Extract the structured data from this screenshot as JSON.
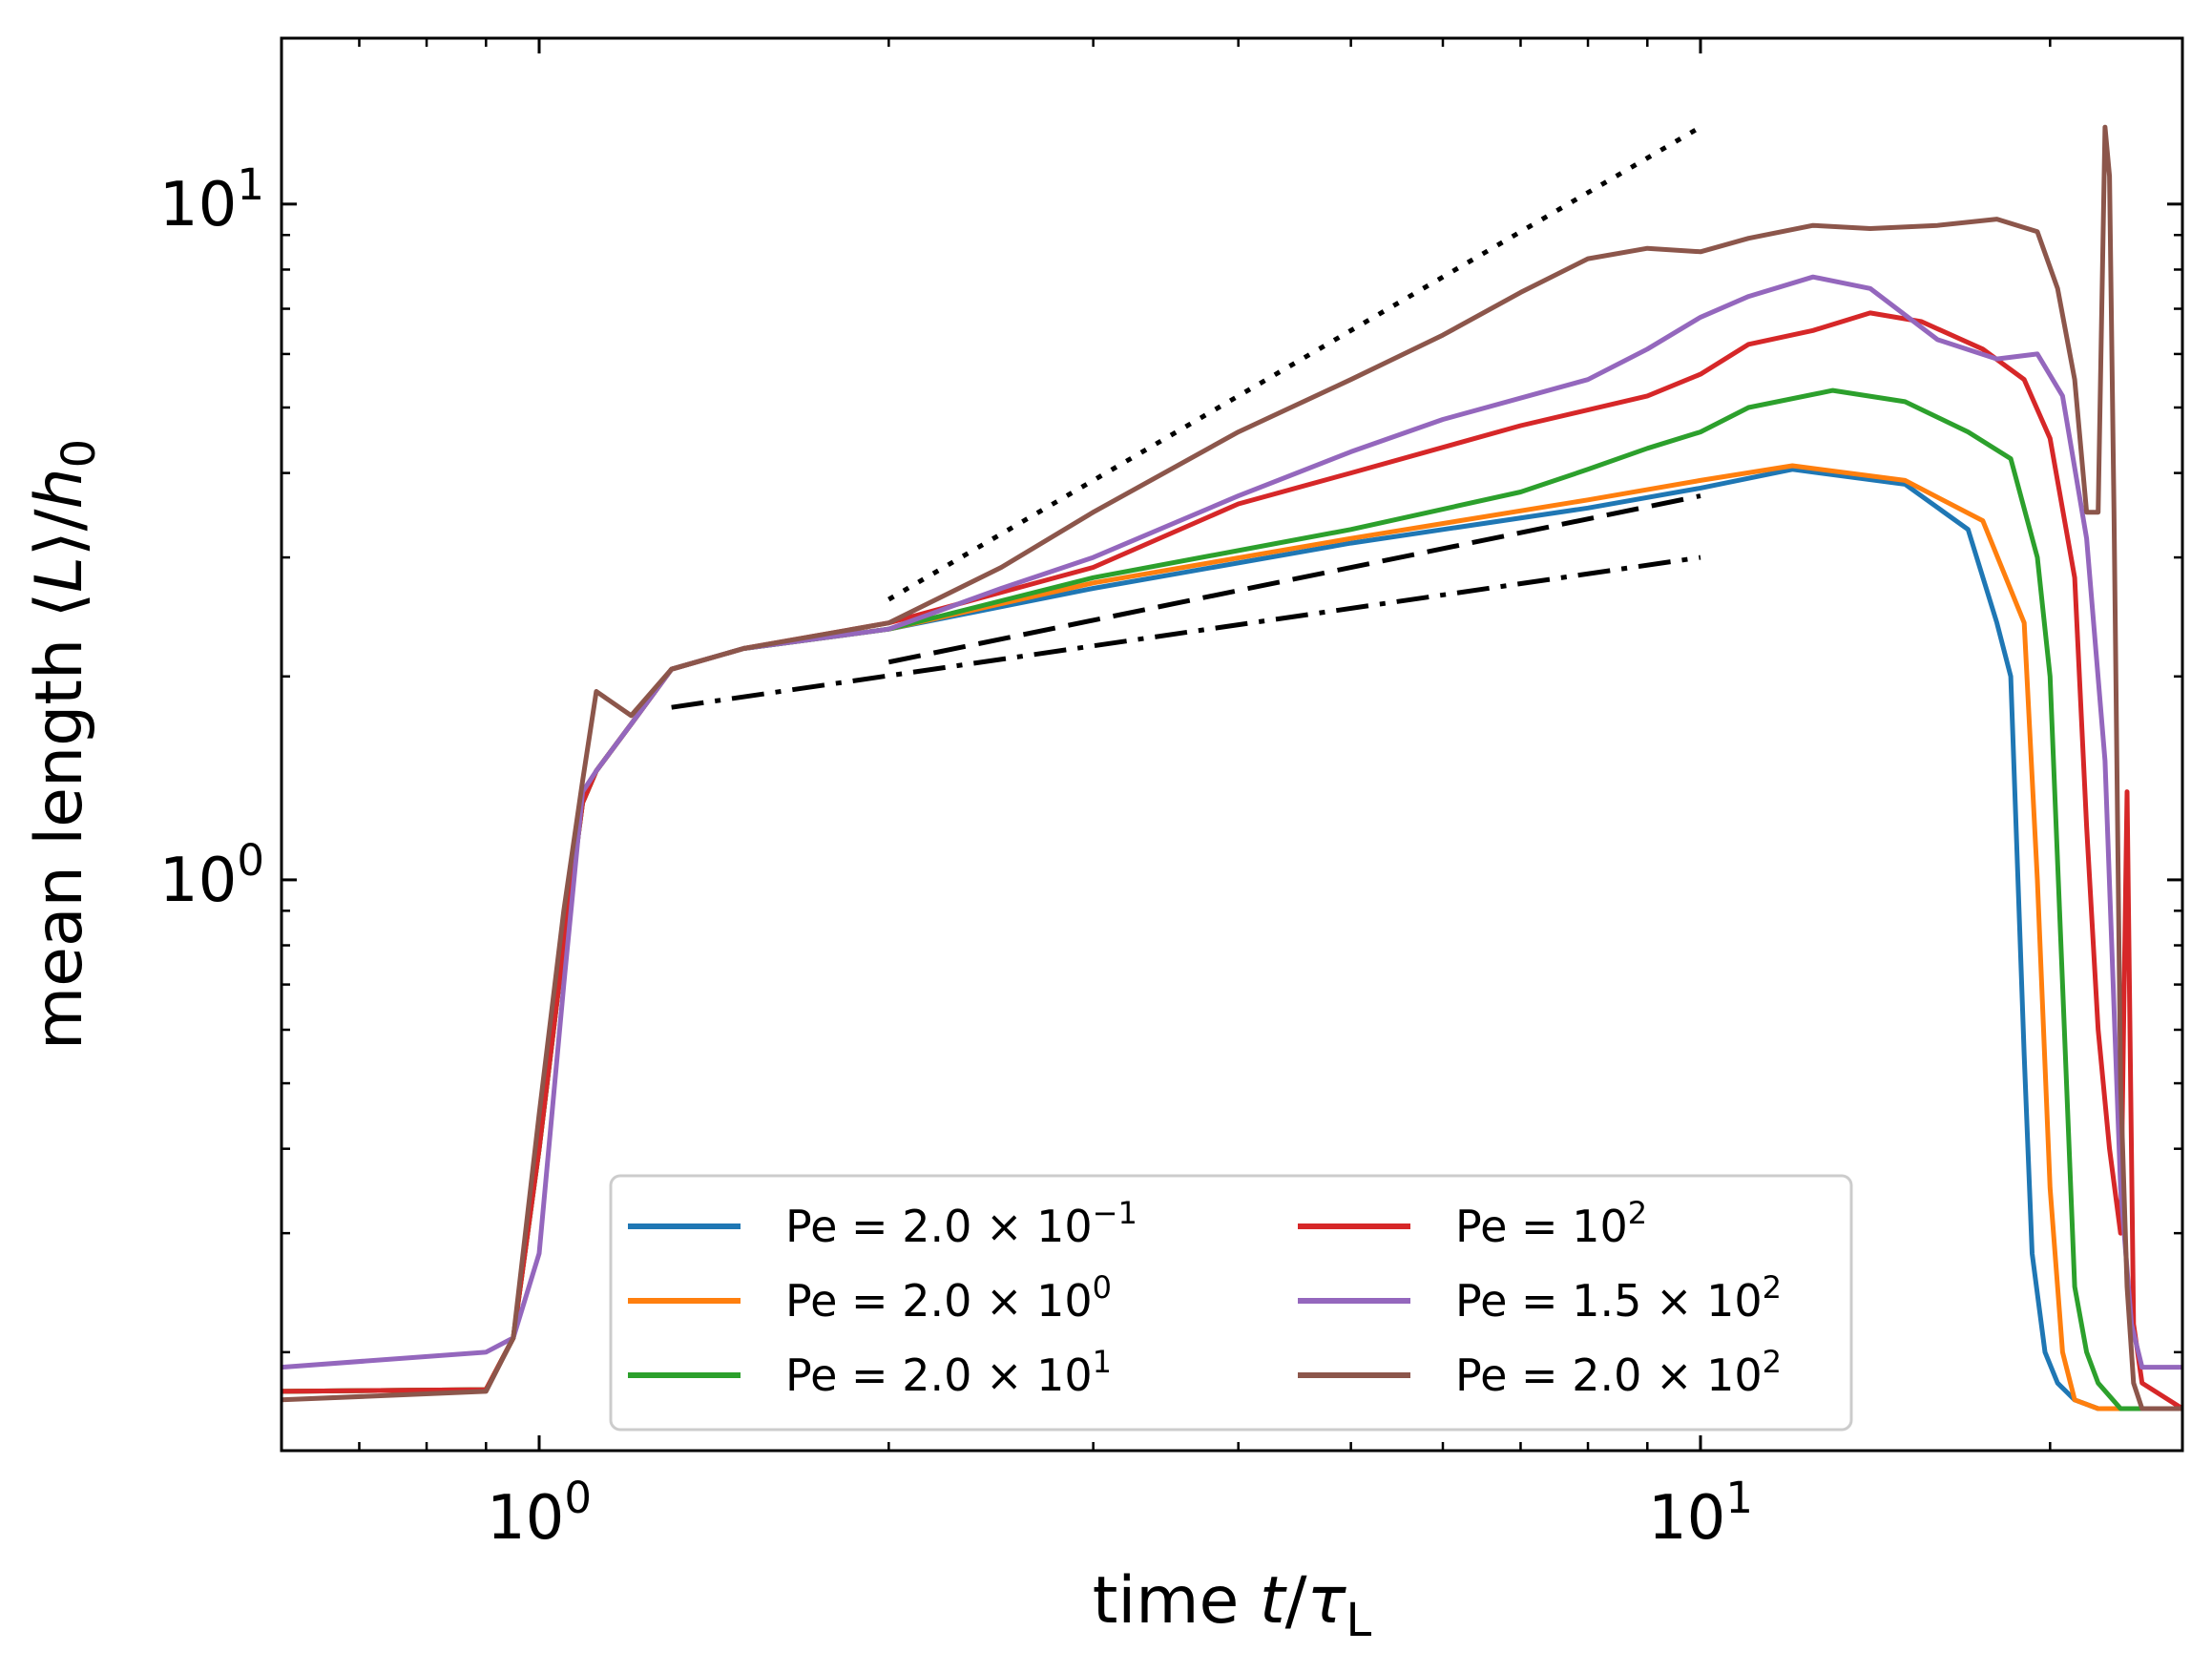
{
  "chart_data": {
    "type": "line",
    "title": "",
    "xlabel": "time t/τ_L",
    "ylabel": "mean length ⟨L⟩/h_0",
    "xscale": "log",
    "yscale": "log",
    "xlim": [
      0.6,
      26
    ],
    "ylim": [
      0.143,
      17.6
    ],
    "x_ticks": [
      {
        "value": 1,
        "base": "10",
        "exp": "0"
      },
      {
        "value": 10,
        "base": "10",
        "exp": "1"
      }
    ],
    "y_ticks": [
      {
        "value": 1,
        "base": "10",
        "exp": "0"
      },
      {
        "value": 10,
        "base": "10",
        "exp": "1"
      }
    ],
    "legend": {
      "location": "lower center",
      "ncol": 2,
      "entries": [
        {
          "prefix": "Pe = 2.0 × 10",
          "exp": "−1"
        },
        {
          "prefix": "Pe = 2.0 × 10",
          "exp": "0"
        },
        {
          "prefix": "Pe = 2.0 × 10",
          "exp": "1"
        },
        {
          "prefix": "Pe = 10",
          "exp": "2"
        },
        {
          "prefix": "Pe = 1.5 × 10",
          "exp": "2"
        },
        {
          "prefix": "Pe = 2.0 × 10",
          "exp": "2"
        }
      ]
    },
    "series": [
      {
        "name": "Pe = 2.0 × 10^−1",
        "color": "#1f77b4",
        "x": [
          0.6,
          0.9,
          0.95,
          1.0,
          1.05,
          1.09,
          1.12,
          1.2,
          1.3,
          1.5,
          2.0,
          3.0,
          5.0,
          8.0,
          10.0,
          12.0,
          15.0,
          17.0,
          18.0,
          18.5,
          19.0,
          19.3,
          19.8,
          20.3,
          21.0,
          22.0,
          26.0
        ],
        "y": [
          0.175,
          0.176,
          0.21,
          0.4,
          0.8,
          1.3,
          1.45,
          1.7,
          2.05,
          2.2,
          2.35,
          2.7,
          3.15,
          3.55,
          3.8,
          4.05,
          3.85,
          3.3,
          2.4,
          2.0,
          0.55,
          0.28,
          0.2,
          0.18,
          0.17,
          0.165,
          0.165
        ]
      },
      {
        "name": "Pe = 2.0 × 10^0",
        "color": "#ff7f0e",
        "x": [
          0.6,
          0.9,
          0.95,
          1.0,
          1.05,
          1.09,
          1.12,
          1.2,
          1.3,
          1.5,
          2.0,
          3.0,
          5.0,
          8.0,
          10.0,
          12.0,
          15.0,
          17.5,
          19.0,
          19.5,
          20.0,
          20.5,
          21.0,
          22.0,
          26.0
        ],
        "y": [
          0.175,
          0.176,
          0.21,
          0.4,
          0.8,
          1.3,
          1.45,
          1.7,
          2.05,
          2.2,
          2.35,
          2.75,
          3.2,
          3.65,
          3.9,
          4.1,
          3.9,
          3.4,
          2.4,
          1.0,
          0.35,
          0.2,
          0.17,
          0.165,
          0.165
        ]
      },
      {
        "name": "Pe = 2.0 × 10^1",
        "color": "#2ca02c",
        "x": [
          0.6,
          0.9,
          0.95,
          1.0,
          1.05,
          1.09,
          1.12,
          1.2,
          1.3,
          1.5,
          2.0,
          3.0,
          5.0,
          7.0,
          8.0,
          9.0,
          10.0,
          11.0,
          13.0,
          15.0,
          17.0,
          18.5,
          19.5,
          20.0,
          20.5,
          21.0,
          21.5,
          22.0,
          23.0,
          26.0
        ],
        "y": [
          0.175,
          0.176,
          0.21,
          0.4,
          0.8,
          1.3,
          1.45,
          1.7,
          2.05,
          2.2,
          2.35,
          2.8,
          3.3,
          3.75,
          4.05,
          4.35,
          4.6,
          5.0,
          5.3,
          5.1,
          4.6,
          4.2,
          3.0,
          2.0,
          0.7,
          0.25,
          0.2,
          0.18,
          0.165,
          0.165
        ]
      },
      {
        "name": "Pe = 10^2",
        "color": "#d62728",
        "x": [
          0.6,
          0.9,
          0.95,
          1.0,
          1.05,
          1.09,
          1.12,
          1.2,
          1.3,
          1.5,
          2.0,
          3.0,
          4.0,
          5.0,
          7.0,
          9.0,
          10.0,
          11.0,
          12.5,
          14.0,
          15.5,
          17.5,
          19.0,
          20.0,
          21.0,
          21.5,
          22.0,
          22.5,
          23.0,
          23.3,
          23.6,
          24.0,
          26.0
        ],
        "y": [
          0.175,
          0.176,
          0.21,
          0.4,
          0.8,
          1.3,
          1.45,
          1.7,
          2.05,
          2.2,
          2.4,
          2.9,
          3.6,
          4.0,
          4.7,
          5.2,
          5.6,
          6.2,
          6.5,
          6.9,
          6.7,
          6.1,
          5.5,
          4.5,
          2.8,
          1.2,
          0.6,
          0.4,
          0.3,
          1.35,
          0.22,
          0.18,
          0.165
        ]
      },
      {
        "name": "Pe = 1.5 × 10^2",
        "color": "#9467bd",
        "x": [
          0.6,
          0.9,
          0.95,
          1.0,
          1.05,
          1.09,
          1.12,
          1.2,
          1.3,
          1.5,
          2.0,
          2.5,
          3.0,
          4.0,
          5.0,
          6.0,
          8.0,
          9.0,
          10.0,
          11.0,
          12.5,
          14.0,
          16.0,
          18.0,
          19.5,
          20.5,
          21.5,
          22.3,
          23.0,
          23.5,
          24.0,
          26.0
        ],
        "y": [
          0.19,
          0.2,
          0.21,
          0.28,
          0.7,
          1.35,
          1.45,
          1.7,
          2.05,
          2.2,
          2.35,
          2.7,
          3.0,
          3.7,
          4.3,
          4.8,
          5.5,
          6.1,
          6.8,
          7.3,
          7.8,
          7.5,
          6.3,
          5.9,
          6.0,
          5.2,
          3.2,
          1.5,
          0.35,
          0.22,
          0.19,
          0.19
        ]
      },
      {
        "name": "Pe = 2.0 × 10^2",
        "color": "#8c564b",
        "x": [
          0.6,
          0.9,
          0.95,
          1.0,
          1.05,
          1.09,
          1.12,
          1.2,
          1.3,
          1.5,
          2.0,
          2.5,
          3.0,
          4.0,
          5.0,
          6.0,
          7.0,
          8.0,
          9.0,
          10.0,
          11.0,
          12.5,
          14.0,
          16.0,
          18.0,
          19.5,
          20.3,
          21.0,
          21.5,
          22.0,
          22.3,
          22.5,
          22.7,
          23.0,
          23.3,
          23.6,
          24.0,
          26.0
        ],
        "y": [
          0.17,
          0.175,
          0.21,
          0.45,
          0.9,
          1.4,
          1.9,
          1.75,
          2.05,
          2.2,
          2.4,
          2.9,
          3.5,
          4.6,
          5.5,
          6.4,
          7.4,
          8.3,
          8.6,
          8.5,
          8.9,
          9.3,
          9.2,
          9.3,
          9.5,
          9.1,
          7.5,
          5.5,
          3.5,
          3.5,
          13.0,
          11.0,
          3.5,
          0.5,
          0.25,
          0.18,
          0.165,
          0.165
        ]
      }
    ],
    "reference_lines": [
      {
        "name": "dotted-guide",
        "style": "dotted",
        "x": [
          2.0,
          10.0
        ],
        "y": [
          2.6,
          13.0
        ]
      },
      {
        "name": "dashed-guide",
        "style": "dashed",
        "x": [
          2.0,
          10.0
        ],
        "y": [
          2.1,
          3.7
        ]
      },
      {
        "name": "dashdot-guide",
        "style": "dashdot",
        "x": [
          1.3,
          10.0
        ],
        "y": [
          1.8,
          3.0
        ]
      }
    ]
  }
}
